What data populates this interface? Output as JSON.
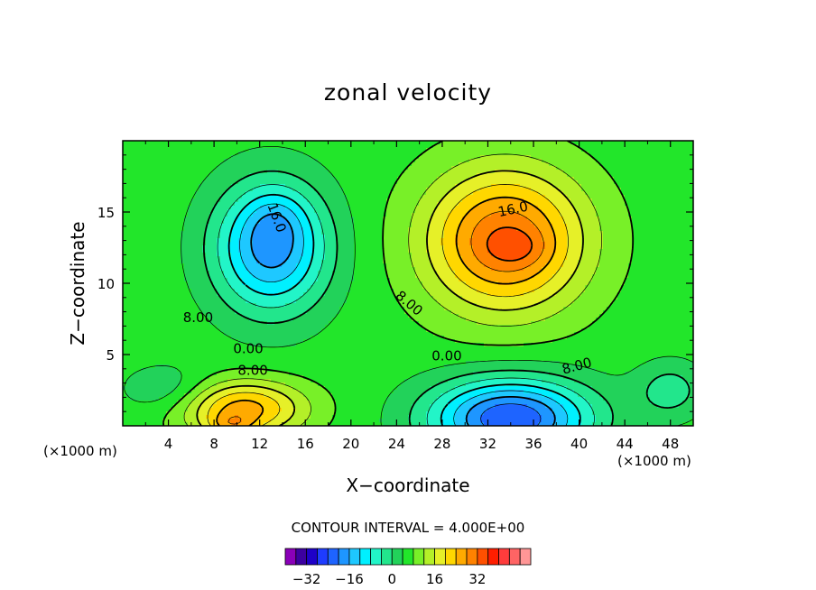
{
  "chart_data": {
    "type": "heatmap",
    "title": "zonal velocity",
    "xlabel": "X−coordinate",
    "ylabel": "Z−coordinate",
    "x_unit_left": "(×1000 m)",
    "x_unit_right": "(×1000 m)",
    "xlim": [
      0,
      50
    ],
    "ylim": [
      0,
      20
    ],
    "x_ticks": [
      4,
      8,
      12,
      16,
      20,
      24,
      28,
      32,
      36,
      40,
      44,
      48
    ],
    "y_ticks": [
      5,
      10,
      15
    ],
    "contour_interval_label": "CONTOUR INTERVAL = 4.000E+00",
    "contour_interval": 4,
    "contour_labels": [
      {
        "text": "16.0",
        "x": 13.5,
        "z": 14.6,
        "rotate": 70
      },
      {
        "text": "8.00",
        "x": 6.6,
        "z": 7.6,
        "rotate": 0
      },
      {
        "text": "0.00",
        "x": 11.0,
        "z": 5.4,
        "rotate": 0
      },
      {
        "text": "8.00",
        "x": 11.4,
        "z": 3.9,
        "rotate": 0
      },
      {
        "text": "16.0",
        "x": 34.2,
        "z": 15.2,
        "rotate": -12
      },
      {
        "text": "8.00",
        "x": 25.1,
        "z": 8.6,
        "rotate": 40
      },
      {
        "text": "0.00",
        "x": 28.4,
        "z": 4.9,
        "rotate": 0
      },
      {
        "text": "8.00",
        "x": 39.8,
        "z": 4.2,
        "rotate": -15
      }
    ],
    "features": [
      {
        "x": 13,
        "z": 12.5,
        "sx": 5.0,
        "sz": 4.5,
        "amp": -24
      },
      {
        "x": 13.5,
        "z": 14.5,
        "sx": 2.5,
        "sz": 2.0,
        "amp": -4
      },
      {
        "x": 33.5,
        "z": 13.0,
        "sx": 7.0,
        "sz": 5.0,
        "amp": 26
      },
      {
        "x": 34.5,
        "z": 12.5,
        "sx": 2.5,
        "sz": 1.2,
        "amp": 4
      },
      {
        "x": 34.0,
        "z": 0.5,
        "sx": 7.0,
        "sz": 2.8,
        "amp": -30
      },
      {
        "x": 10.5,
        "z": 1.2,
        "sx": 5.5,
        "sz": 2.0,
        "amp": 20
      },
      {
        "x": 9.5,
        "z": 0.0,
        "sx": 2.0,
        "sz": 0.8,
        "amp": 8
      },
      {
        "x": 4.0,
        "z": 2.5,
        "sx": 4.0,
        "sz": 1.8,
        "amp": -6
      },
      {
        "x": 48.0,
        "z": 2.5,
        "sx": 3.0,
        "sz": 2.0,
        "amp": -8
      }
    ],
    "colorbar": {
      "colors": [
        "#8a00b8",
        "#3c00a0",
        "#1e00c8",
        "#1e3cff",
        "#1e64ff",
        "#1e96ff",
        "#1ec8ff",
        "#00f0ff",
        "#22f5c8",
        "#22e68c",
        "#22d25a",
        "#22e62a",
        "#78f028",
        "#b4f028",
        "#e6f028",
        "#ffd700",
        "#ffaa00",
        "#ff8200",
        "#ff5000",
        "#ff1e00",
        "#ff3c3c",
        "#ff6464",
        "#ff9696"
      ],
      "tick_values": [
        -32,
        -16,
        0,
        16,
        32
      ],
      "tick_labels": [
        "−32",
        "−16",
        "0",
        "16",
        "32"
      ],
      "vmin": -40,
      "vmax": 52
    },
    "grid": false,
    "legend": "bottom colorbar"
  }
}
